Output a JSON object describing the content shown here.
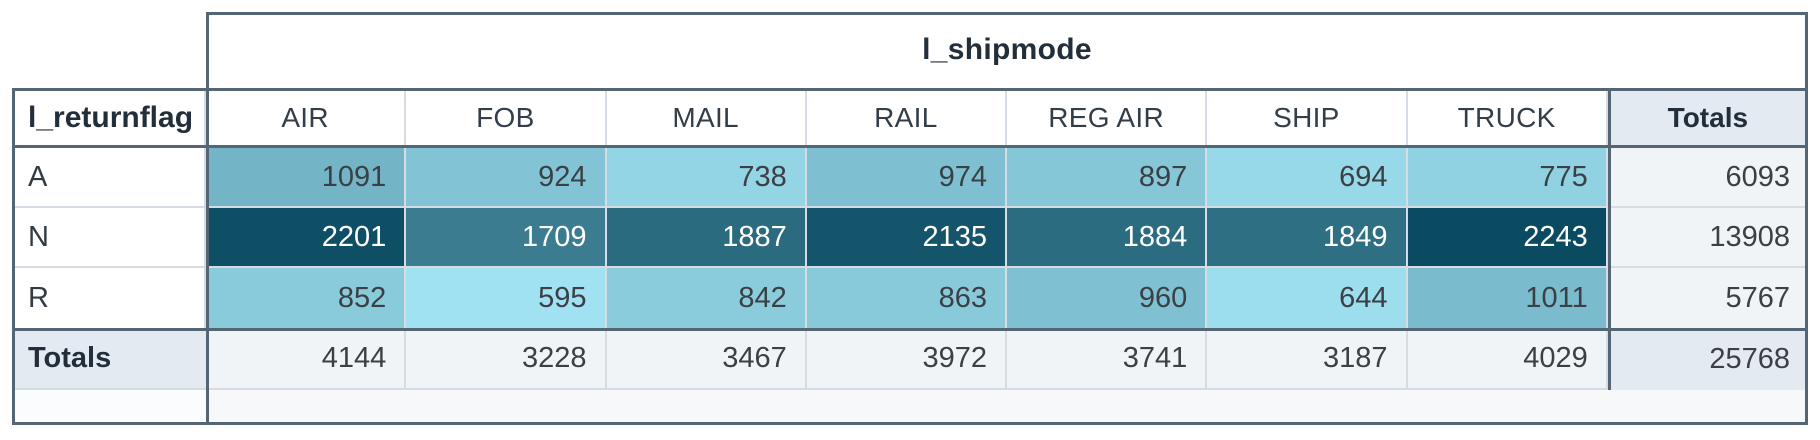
{
  "chart_data": {
    "type": "heatmap",
    "title": "l_shipmode",
    "row_dimension": "l_returnflag",
    "totals_label": "Totals",
    "columns": [
      "AIR",
      "FOB",
      "MAIL",
      "RAIL",
      "REG AIR",
      "SHIP",
      "TRUCK"
    ],
    "rows": [
      "A",
      "N",
      "R"
    ],
    "values": [
      [
        1091,
        924,
        738,
        974,
        897,
        694,
        775
      ],
      [
        2201,
        1709,
        1887,
        2135,
        1884,
        1849,
        2243
      ],
      [
        852,
        595,
        842,
        863,
        960,
        644,
        1011
      ]
    ],
    "row_totals": [
      6093,
      13908,
      5767
    ],
    "column_totals": [
      4144,
      3228,
      3467,
      3972,
      3741,
      3187,
      4029
    ],
    "grand_total": 25768,
    "color_scale": {
      "min": 595,
      "max": 2243,
      "min_color": "#a0e1f2",
      "max_color": "#0b4b61",
      "dark_text": "#3a4045",
      "light_text": "#ffffff"
    },
    "layout": {
      "legend": false,
      "grid": true,
      "legend_position": "none"
    }
  }
}
